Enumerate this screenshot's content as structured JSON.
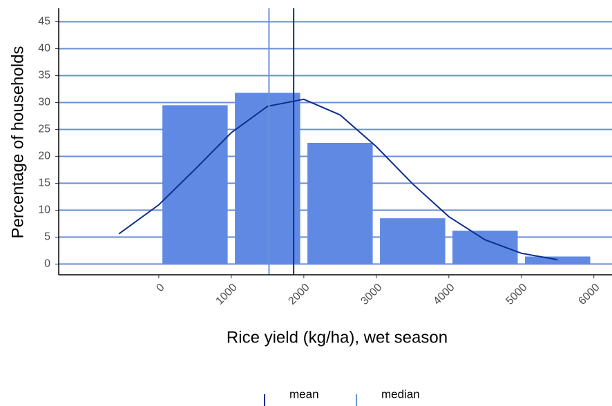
{
  "chart_data": {
    "type": "histogram",
    "xlabel": "Rice yield (kg/ha), wet season",
    "ylabel": "Percentage of households",
    "bins": [
      0,
      1000,
      2000,
      3000,
      4000,
      5000,
      6000
    ],
    "values": [
      29.5,
      31.8,
      22.5,
      8.5,
      6.2,
      1.4
    ],
    "color": "#6089e4",
    "curve": {
      "color": "#0d2f8c",
      "x": [
        -550,
        0,
        500,
        1000,
        1500,
        2000,
        2500,
        3000,
        3500,
        4000,
        4500,
        5000,
        5500
      ],
      "y": [
        5.6,
        11.0,
        17.6,
        24.4,
        29.3,
        30.6,
        27.7,
        21.8,
        14.9,
        8.8,
        4.5,
        2.0,
        0.8
      ]
    },
    "vlines": [
      {
        "name": "mean",
        "value": 1860,
        "color": "#0d2f8c"
      },
      {
        "name": "median",
        "value": 1520,
        "color": "#6a94dc"
      }
    ],
    "xlim": [
      -1380,
      6250
    ],
    "xticks": [
      0,
      1000,
      2000,
      3000,
      4000,
      5000,
      6000
    ],
    "ylim": [
      -2,
      47.5
    ],
    "yticks": [
      0,
      5,
      10,
      15,
      20,
      25,
      30,
      35,
      40,
      45
    ],
    "grid": true,
    "grid_color": "#6a8fd8",
    "legend": "bottom"
  }
}
